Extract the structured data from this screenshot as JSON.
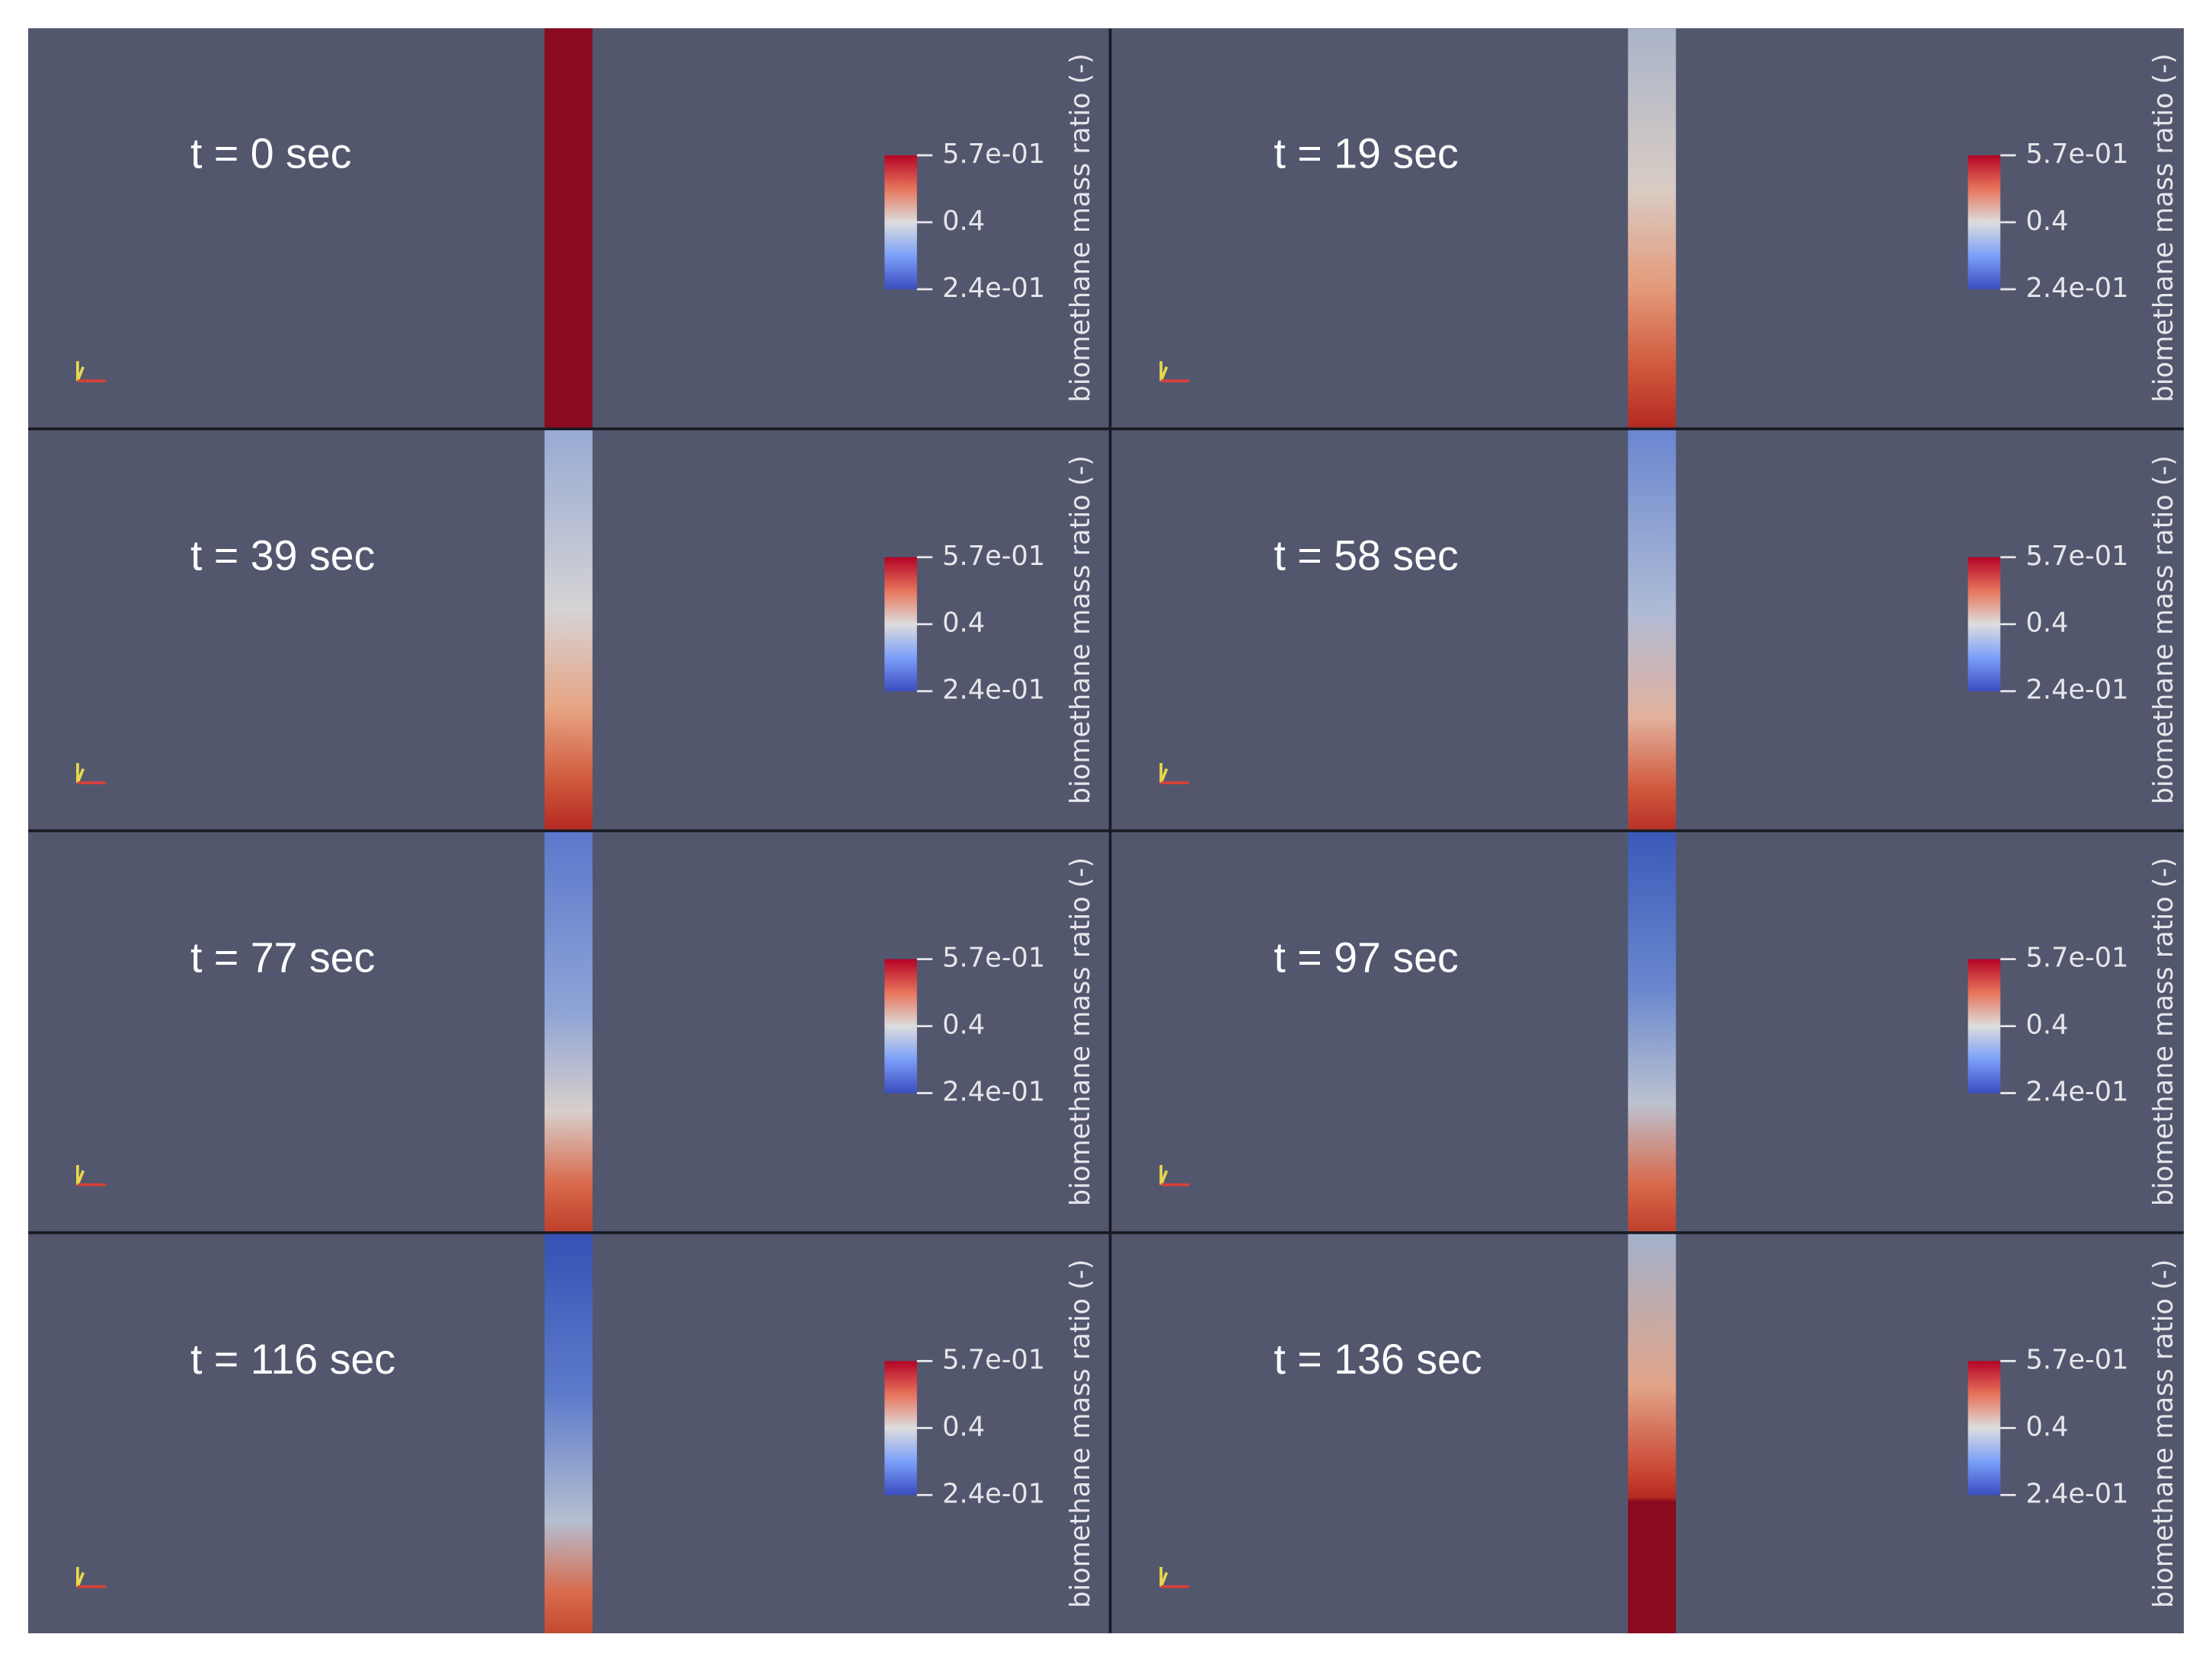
{
  "panels": [
    {
      "label": "t = 0 sec",
      "colorbar": {
        "title": "biomethane mass ratio (-)",
        "ticks": [
          "5.7e-01",
          "0.4",
          "2.4e-01"
        ]
      }
    },
    {
      "label": "t = 19 sec",
      "colorbar": {
        "title": "biomethane mass ratio (-)",
        "ticks": [
          "5.7e-01",
          "0.4",
          "2.4e-01"
        ]
      }
    },
    {
      "label": "t = 39 sec",
      "colorbar": {
        "title": "biomethane mass ratio (-)",
        "ticks": [
          "5.7e-01",
          "0.4",
          "2.4e-01"
        ]
      }
    },
    {
      "label": "t = 58 sec",
      "colorbar": {
        "title": "biomethane mass ratio (-)",
        "ticks": [
          "5.7e-01",
          "0.4",
          "2.4e-01"
        ]
      }
    },
    {
      "label": "t = 77 sec",
      "colorbar": {
        "title": "biomethane mass ratio (-)",
        "ticks": [
          "5.7e-01",
          "0.4",
          "2.4e-01"
        ]
      }
    },
    {
      "label": "t = 97 sec",
      "colorbar": {
        "title": "biomethane mass ratio (-)",
        "ticks": [
          "5.7e-01",
          "0.4",
          "2.4e-01"
        ]
      }
    },
    {
      "label": "t = 116 sec",
      "colorbar": {
        "title": "biomethane mass ratio (-)",
        "ticks": [
          "5.7e-01",
          "0.4",
          "2.4e-01"
        ]
      }
    },
    {
      "label": "t = 136 sec",
      "colorbar": {
        "title": "biomethane mass ratio (-)",
        "ticks": [
          "5.7e-01",
          "0.4",
          "2.4e-01"
        ]
      }
    }
  ]
}
